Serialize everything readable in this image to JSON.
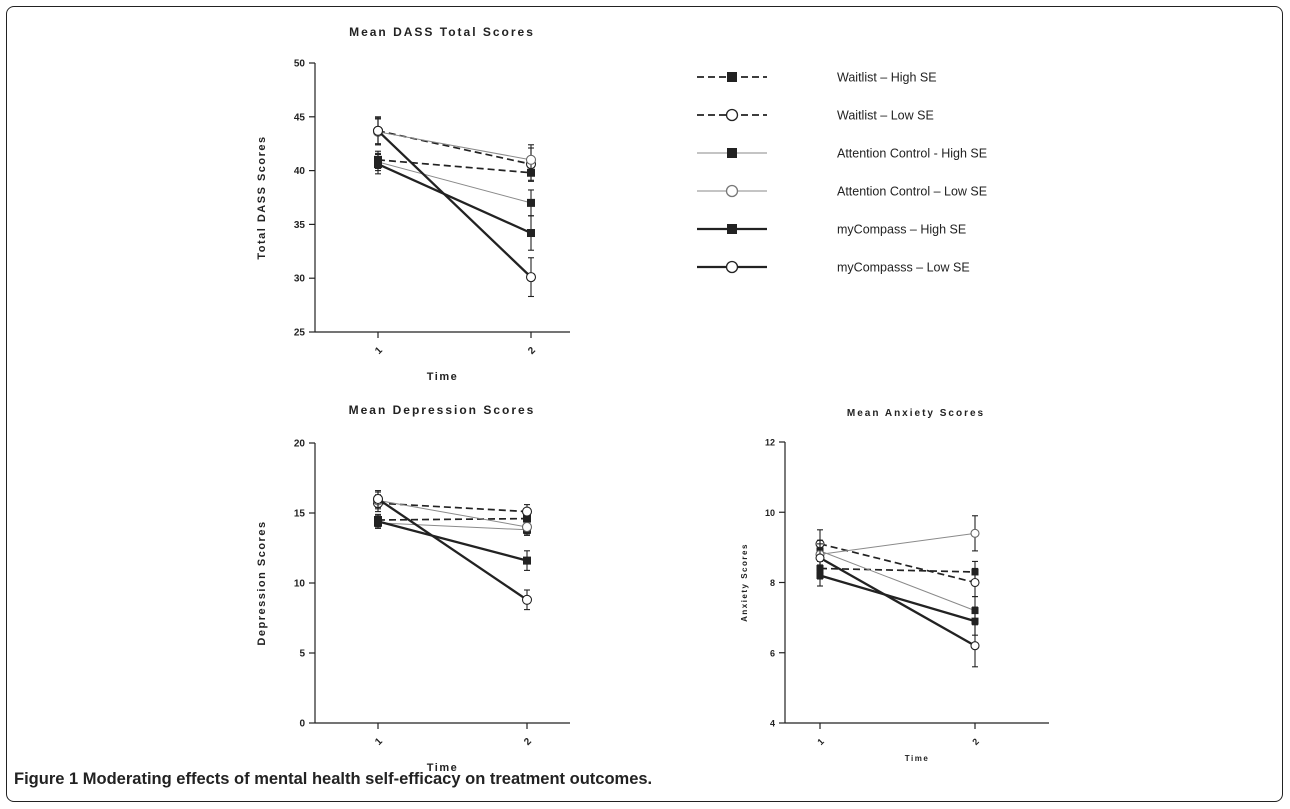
{
  "figure": {
    "caption_label": "Figure 1",
    "caption_text": "Moderating effects of mental health self-efficacy on treatment outcomes."
  },
  "legend": {
    "entries": [
      {
        "label": "Waitlist – High SE",
        "dash": "dashed",
        "marker": "square",
        "weight": "medium"
      },
      {
        "label": "Waitlist – Low SE",
        "dash": "dashed",
        "marker": "circle",
        "weight": "medium"
      },
      {
        "label": "Attention Control - High SE",
        "dash": "solid",
        "marker": "square",
        "weight": "thin"
      },
      {
        "label": "Attention Control – Low SE",
        "dash": "solid",
        "marker": "circle",
        "weight": "thin"
      },
      {
        "label": "myCompass – High SE",
        "dash": "solid",
        "marker": "square",
        "weight": "thick"
      },
      {
        "label": "myCompasss – Low SE",
        "dash": "solid",
        "marker": "circle",
        "weight": "thick"
      }
    ]
  },
  "chart_data": [
    {
      "type": "line",
      "title": "Mean DASS Total Scores",
      "xlabel": "Time",
      "ylabel": "Total DASS Scores",
      "x": [
        "1",
        "2"
      ],
      "ylim": [
        25,
        50
      ],
      "yticks": [
        25,
        30,
        35,
        40,
        45,
        50
      ],
      "series": [
        {
          "name": "Waitlist – High SE",
          "values": [
            41.0,
            39.8
          ],
          "err": [
            0.8,
            0.8
          ]
        },
        {
          "name": "Waitlist – Low SE",
          "values": [
            43.7,
            40.6
          ],
          "err": [
            1.2,
            1.5
          ]
        },
        {
          "name": "Attention Control - High SE",
          "values": [
            40.8,
            37.0
          ],
          "err": [
            0.8,
            1.2
          ]
        },
        {
          "name": "Attention Control – Low SE",
          "values": [
            43.6,
            41.0
          ],
          "err": [
            1.2,
            1.4
          ]
        },
        {
          "name": "myCompass – High SE",
          "values": [
            40.6,
            34.2
          ],
          "err": [
            0.9,
            1.6
          ]
        },
        {
          "name": "myCompasss – Low SE",
          "values": [
            43.7,
            30.1
          ],
          "err": [
            1.3,
            1.8
          ]
        }
      ]
    },
    {
      "type": "line",
      "title": "Mean Depression Scores",
      "xlabel": "Time",
      "ylabel": "Depression Scores",
      "x": [
        "1",
        "2"
      ],
      "ylim": [
        0,
        20
      ],
      "yticks": [
        0,
        5,
        10,
        15,
        20
      ],
      "series": [
        {
          "name": "Waitlist – High SE",
          "values": [
            14.5,
            14.6
          ],
          "err": [
            0.4,
            0.4
          ]
        },
        {
          "name": "Waitlist – Low SE",
          "values": [
            15.7,
            15.1
          ],
          "err": [
            0.6,
            0.5
          ]
        },
        {
          "name": "Attention Control - High SE",
          "values": [
            14.3,
            13.8
          ],
          "err": [
            0.4,
            0.4
          ]
        },
        {
          "name": "Attention Control – Low SE",
          "values": [
            15.9,
            14.0
          ],
          "err": [
            0.6,
            0.5
          ]
        },
        {
          "name": "myCompass – High SE",
          "values": [
            14.4,
            11.6
          ],
          "err": [
            0.4,
            0.7
          ]
        },
        {
          "name": "myCompasss – Low SE",
          "values": [
            16.0,
            8.8
          ],
          "err": [
            0.6,
            0.7
          ]
        }
      ]
    },
    {
      "type": "line",
      "title": "Mean Anxiety Scores",
      "xlabel": "Time",
      "ylabel": "Anxiety Scores",
      "x": [
        "1",
        "2"
      ],
      "ylim": [
        4,
        12
      ],
      "yticks": [
        4,
        6,
        8,
        10,
        12
      ],
      "series": [
        {
          "name": "Waitlist – High SE",
          "values": [
            8.4,
            8.3
          ],
          "err": [
            0.3,
            0.3
          ]
        },
        {
          "name": "Waitlist – Low SE",
          "values": [
            9.1,
            8.0
          ],
          "err": [
            0.4,
            0.4
          ]
        },
        {
          "name": "Attention Control - High SE",
          "values": [
            8.9,
            7.2
          ],
          "err": [
            0.3,
            0.4
          ]
        },
        {
          "name": "Attention Control – Low SE",
          "values": [
            8.8,
            9.4
          ],
          "err": [
            0.4,
            0.5
          ]
        },
        {
          "name": "myCompass – High SE",
          "values": [
            8.2,
            6.9
          ],
          "err": [
            0.3,
            0.4
          ]
        },
        {
          "name": "myCompasss – Low SE",
          "values": [
            8.7,
            6.2
          ],
          "err": [
            0.4,
            0.6
          ]
        }
      ]
    }
  ]
}
